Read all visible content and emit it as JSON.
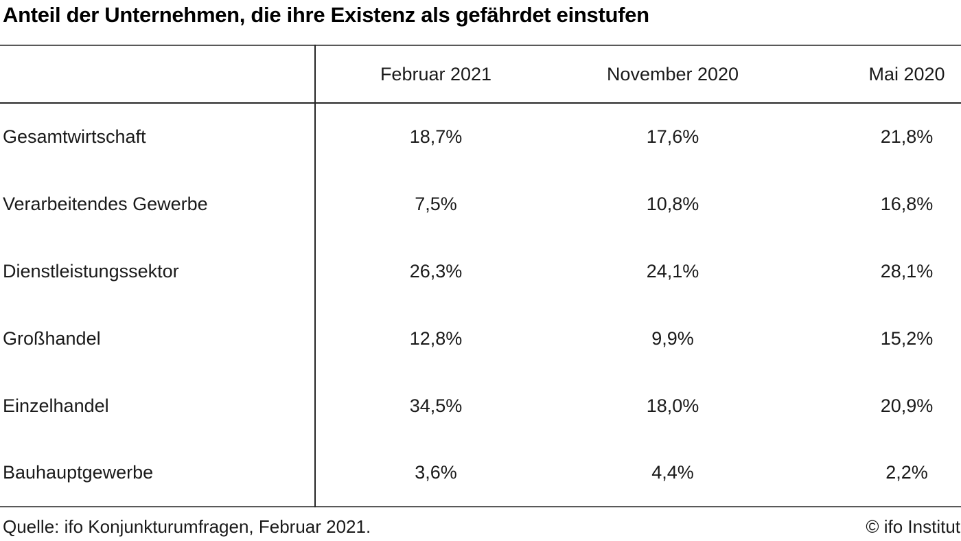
{
  "title": "Anteil der Unternehmen, die ihre Existenz als gefährdet einstufen",
  "table": {
    "columns": [
      "Februar 2021",
      "November 2020",
      "Mai 2020"
    ],
    "rows": [
      {
        "label": "Gesamtwirtschaft",
        "values": [
          "18,7%",
          "17,6%",
          "21,8%"
        ]
      },
      {
        "label": "Verarbeitendes Gewerbe",
        "values": [
          "7,5%",
          "10,8%",
          "16,8%"
        ]
      },
      {
        "label": "Dienstleistungssektor",
        "values": [
          "26,3%",
          "24,1%",
          "28,1%"
        ]
      },
      {
        "label": "Großhandel",
        "values": [
          "12,8%",
          "9,9%",
          "15,2%"
        ]
      },
      {
        "label": "Einzelhandel",
        "values": [
          "34,5%",
          "18,0%",
          "20,9%"
        ]
      },
      {
        "label": "Bauhauptgewerbe",
        "values": [
          "3,6%",
          "4,4%",
          "2,2%"
        ]
      }
    ]
  },
  "footer": {
    "source": "Quelle: ifo Konjunkturumfragen, Februar 2021.",
    "copyright": "© ifo Institut"
  },
  "colors": {
    "background": "#ffffff",
    "text": "#1a1a1a",
    "rule_outer": "#595959",
    "rule_inner": "#262626"
  },
  "chart_data": {
    "type": "table",
    "title": "Anteil der Unternehmen, die ihre Existenz als gefährdet einstufen",
    "categories": [
      "Gesamtwirtschaft",
      "Verarbeitendes Gewerbe",
      "Dienstleistungssektor",
      "Großhandel",
      "Einzelhandel",
      "Bauhauptgewerbe"
    ],
    "series": [
      {
        "name": "Februar 2021",
        "values": [
          18.7,
          7.5,
          26.3,
          12.8,
          34.5,
          3.6
        ]
      },
      {
        "name": "November 2020",
        "values": [
          17.6,
          10.8,
          24.1,
          9.9,
          18.0,
          4.4
        ]
      },
      {
        "name": "Mai 2020",
        "values": [
          21.8,
          16.8,
          28.1,
          15.2,
          20.9,
          2.2
        ]
      }
    ],
    "unit": "%",
    "decimal_separator": ",",
    "source": "Quelle: ifo Konjunkturumfragen, Februar 2021.",
    "copyright": "© ifo Institut"
  }
}
